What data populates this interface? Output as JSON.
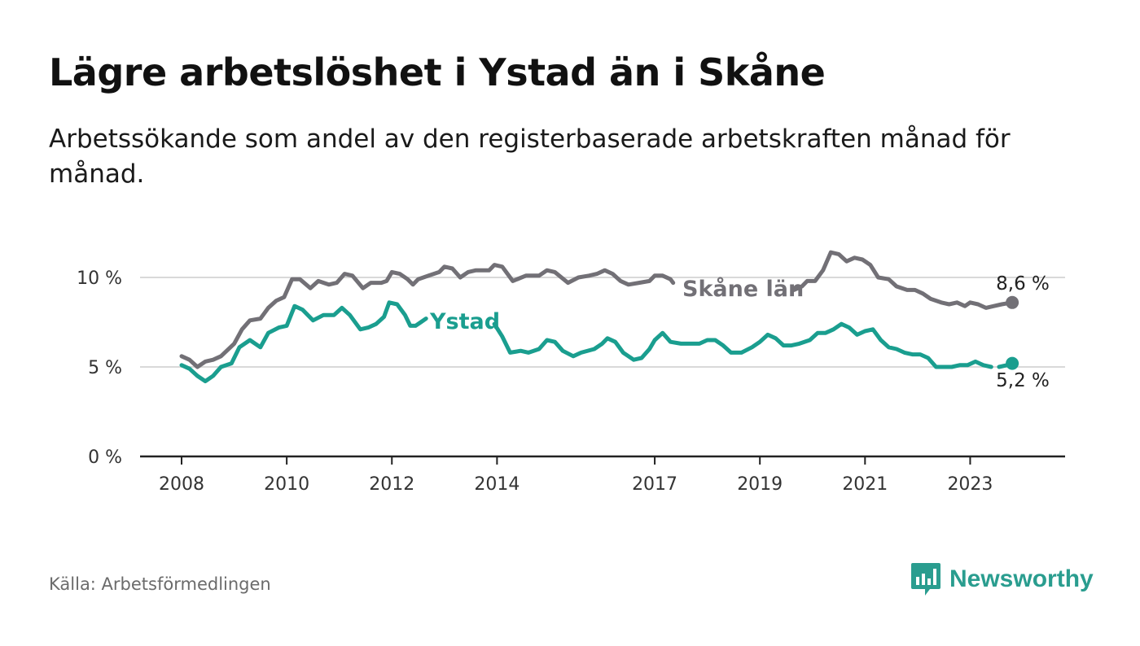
{
  "header": {
    "title": "Lägre arbetslöshet i Ystad än i Skåne",
    "subtitle": "Arbetssökande som andel av den registerbaserade arbetskraften månad för månad."
  },
  "footer": {
    "source": "Källa: Arbetsförmedlingen",
    "brand": "Newsworthy"
  },
  "colors": {
    "skane": "#727076",
    "ystad": "#1a9e8f",
    "grid": "#d9d9d9",
    "axis": "#222222"
  },
  "chart_data": {
    "type": "line",
    "title": "Lägre arbetslöshet i Ystad än i Skåne",
    "subtitle": "Arbetssökande som andel av den registerbaserade arbetskraften månad för månad.",
    "xlabel": "",
    "ylabel": "",
    "xlim": [
      2008.0,
      2024.0
    ],
    "ylim": [
      0,
      12
    ],
    "y_ticks": [
      {
        "value": 0,
        "label": "0 %"
      },
      {
        "value": 5,
        "label": "5 %"
      },
      {
        "value": 10,
        "label": "10 %"
      }
    ],
    "x_ticks": [
      {
        "value": 2008,
        "label": "2008"
      },
      {
        "value": 2010,
        "label": "2010"
      },
      {
        "value": 2012,
        "label": "2012"
      },
      {
        "value": 2014,
        "label": "2014"
      },
      {
        "value": 2017,
        "label": "2017"
      },
      {
        "value": 2019,
        "label": "2019"
      },
      {
        "value": 2021,
        "label": "2021"
      },
      {
        "value": 2023,
        "label": "2023"
      }
    ],
    "grid": true,
    "series": [
      {
        "name": "Skåne län",
        "label": "Skåne län",
        "end_label": "8,6 %",
        "points": [
          [
            2008.0,
            5.6
          ],
          [
            2008.15,
            5.4
          ],
          [
            2008.3,
            5.0
          ],
          [
            2008.45,
            5.3
          ],
          [
            2008.6,
            5.4
          ],
          [
            2008.75,
            5.6
          ],
          [
            2009.0,
            6.3
          ],
          [
            2009.15,
            7.1
          ],
          [
            2009.3,
            7.6
          ],
          [
            2009.5,
            7.7
          ],
          [
            2009.65,
            8.3
          ],
          [
            2009.8,
            8.7
          ],
          [
            2009.95,
            8.9
          ],
          [
            2010.1,
            9.9
          ],
          [
            2010.25,
            9.9
          ],
          [
            2010.45,
            9.4
          ],
          [
            2010.6,
            9.8
          ],
          [
            2010.8,
            9.6
          ],
          [
            2010.95,
            9.7
          ],
          [
            2011.1,
            10.2
          ],
          [
            2011.25,
            10.1
          ],
          [
            2011.45,
            9.4
          ],
          [
            2011.6,
            9.7
          ],
          [
            2011.8,
            9.7
          ],
          [
            2011.9,
            9.8
          ],
          [
            2012.0,
            10.3
          ],
          [
            2012.15,
            10.2
          ],
          [
            2012.3,
            9.9
          ],
          [
            2012.4,
            9.6
          ],
          [
            2012.5,
            9.9
          ],
          [
            2012.7,
            10.1
          ],
          [
            2012.9,
            10.3
          ],
          [
            2013.0,
            10.6
          ],
          [
            2013.15,
            10.5
          ],
          [
            2013.3,
            10.0
          ],
          [
            2013.45,
            10.3
          ],
          [
            2013.6,
            10.4
          ],
          [
            2013.85,
            10.4
          ],
          [
            2013.95,
            10.7
          ],
          [
            2014.1,
            10.6
          ],
          [
            2014.3,
            9.8
          ],
          [
            2014.55,
            10.1
          ],
          [
            2014.8,
            10.1
          ],
          [
            2014.95,
            10.4
          ],
          [
            2015.1,
            10.3
          ],
          [
            2015.35,
            9.7
          ],
          [
            2015.55,
            10.0
          ],
          [
            2015.75,
            10.1
          ],
          [
            2015.9,
            10.2
          ],
          [
            2016.05,
            10.4
          ],
          [
            2016.2,
            10.2
          ],
          [
            2016.35,
            9.8
          ],
          [
            2016.5,
            9.6
          ],
          [
            2016.7,
            9.7
          ],
          [
            2016.9,
            9.8
          ],
          [
            2017.0,
            10.1
          ],
          [
            2017.15,
            10.1
          ],
          [
            2017.3,
            9.9
          ],
          [
            2017.35,
            9.7
          ],
          null,
          [
            2019.65,
            9.3
          ],
          [
            2019.8,
            9.5
          ],
          [
            2019.9,
            9.8
          ],
          [
            2020.05,
            9.8
          ],
          [
            2020.2,
            10.4
          ],
          [
            2020.35,
            11.4
          ],
          [
            2020.5,
            11.3
          ],
          [
            2020.65,
            10.9
          ],
          [
            2020.8,
            11.1
          ],
          [
            2020.95,
            11.0
          ],
          [
            2021.1,
            10.7
          ],
          [
            2021.25,
            10.0
          ],
          [
            2021.45,
            9.9
          ],
          [
            2021.6,
            9.5
          ],
          [
            2021.8,
            9.3
          ],
          [
            2021.95,
            9.3
          ],
          [
            2022.1,
            9.1
          ],
          [
            2022.25,
            8.8
          ],
          [
            2022.45,
            8.6
          ],
          [
            2022.6,
            8.5
          ],
          [
            2022.75,
            8.6
          ],
          [
            2022.9,
            8.4
          ],
          [
            2023.0,
            8.6
          ],
          [
            2023.15,
            8.5
          ],
          [
            2023.3,
            8.3
          ],
          [
            2023.45,
            8.4
          ],
          [
            2023.6,
            8.5
          ],
          [
            2023.8,
            8.6
          ]
        ]
      },
      {
        "name": "Ystad",
        "label": "Ystad",
        "end_label": "5,2 %",
        "points": [
          [
            2008.0,
            5.1
          ],
          [
            2008.15,
            4.9
          ],
          [
            2008.3,
            4.5
          ],
          [
            2008.45,
            4.2
          ],
          [
            2008.6,
            4.5
          ],
          [
            2008.75,
            5.0
          ],
          [
            2008.95,
            5.2
          ],
          [
            2009.1,
            6.1
          ],
          [
            2009.3,
            6.5
          ],
          [
            2009.5,
            6.1
          ],
          [
            2009.65,
            6.9
          ],
          [
            2009.85,
            7.2
          ],
          [
            2010.0,
            7.3
          ],
          [
            2010.15,
            8.4
          ],
          [
            2010.3,
            8.2
          ],
          [
            2010.5,
            7.6
          ],
          [
            2010.7,
            7.9
          ],
          [
            2010.9,
            7.9
          ],
          [
            2011.05,
            8.3
          ],
          [
            2011.2,
            7.9
          ],
          [
            2011.4,
            7.1
          ],
          [
            2011.55,
            7.2
          ],
          [
            2011.7,
            7.4
          ],
          [
            2011.85,
            7.8
          ],
          [
            2011.95,
            8.6
          ],
          [
            2012.1,
            8.5
          ],
          [
            2012.25,
            7.9
          ],
          [
            2012.35,
            7.3
          ],
          [
            2012.45,
            7.3
          ],
          [
            2012.55,
            7.5
          ],
          [
            2012.65,
            7.7
          ],
          null,
          [
            2013.95,
            7.4
          ],
          [
            2014.1,
            6.7
          ],
          [
            2014.25,
            5.8
          ],
          [
            2014.45,
            5.9
          ],
          [
            2014.6,
            5.8
          ],
          [
            2014.8,
            6.0
          ],
          [
            2014.95,
            6.5
          ],
          [
            2015.1,
            6.4
          ],
          [
            2015.25,
            5.9
          ],
          [
            2015.45,
            5.6
          ],
          [
            2015.6,
            5.8
          ],
          [
            2015.85,
            6.0
          ],
          [
            2016.0,
            6.3
          ],
          [
            2016.1,
            6.6
          ],
          [
            2016.25,
            6.4
          ],
          [
            2016.4,
            5.8
          ],
          [
            2016.6,
            5.4
          ],
          [
            2016.75,
            5.5
          ],
          [
            2016.9,
            6.0
          ],
          [
            2017.0,
            6.5
          ],
          [
            2017.15,
            6.9
          ],
          [
            2017.3,
            6.4
          ],
          [
            2017.5,
            6.3
          ],
          [
            2017.65,
            6.3
          ],
          [
            2017.85,
            6.3
          ],
          [
            2018.0,
            6.5
          ],
          [
            2018.15,
            6.5
          ],
          [
            2018.3,
            6.2
          ],
          [
            2018.45,
            5.8
          ],
          [
            2018.65,
            5.8
          ],
          [
            2018.85,
            6.1
          ],
          [
            2019.0,
            6.4
          ],
          [
            2019.15,
            6.8
          ],
          [
            2019.3,
            6.6
          ],
          [
            2019.45,
            6.2
          ],
          [
            2019.6,
            6.2
          ],
          [
            2019.75,
            6.3
          ],
          [
            2019.95,
            6.5
          ],
          [
            2020.1,
            6.9
          ],
          [
            2020.25,
            6.9
          ],
          [
            2020.4,
            7.1
          ],
          [
            2020.55,
            7.4
          ],
          [
            2020.7,
            7.2
          ],
          [
            2020.85,
            6.8
          ],
          [
            2021.0,
            7.0
          ],
          [
            2021.15,
            7.1
          ],
          [
            2021.3,
            6.5
          ],
          [
            2021.45,
            6.1
          ],
          [
            2021.6,
            6.0
          ],
          [
            2021.75,
            5.8
          ],
          [
            2021.9,
            5.7
          ],
          [
            2022.05,
            5.7
          ],
          [
            2022.2,
            5.5
          ],
          [
            2022.35,
            5.0
          ],
          [
            2022.5,
            5.0
          ],
          [
            2022.65,
            5.0
          ],
          [
            2022.8,
            5.1
          ],
          [
            2022.95,
            5.1
          ],
          [
            2023.1,
            5.3
          ],
          [
            2023.25,
            5.1
          ],
          [
            2023.4,
            5.0
          ],
          null,
          [
            2023.55,
            5.0
          ],
          [
            2023.7,
            5.1
          ],
          [
            2023.8,
            5.2
          ]
        ]
      }
    ]
  }
}
